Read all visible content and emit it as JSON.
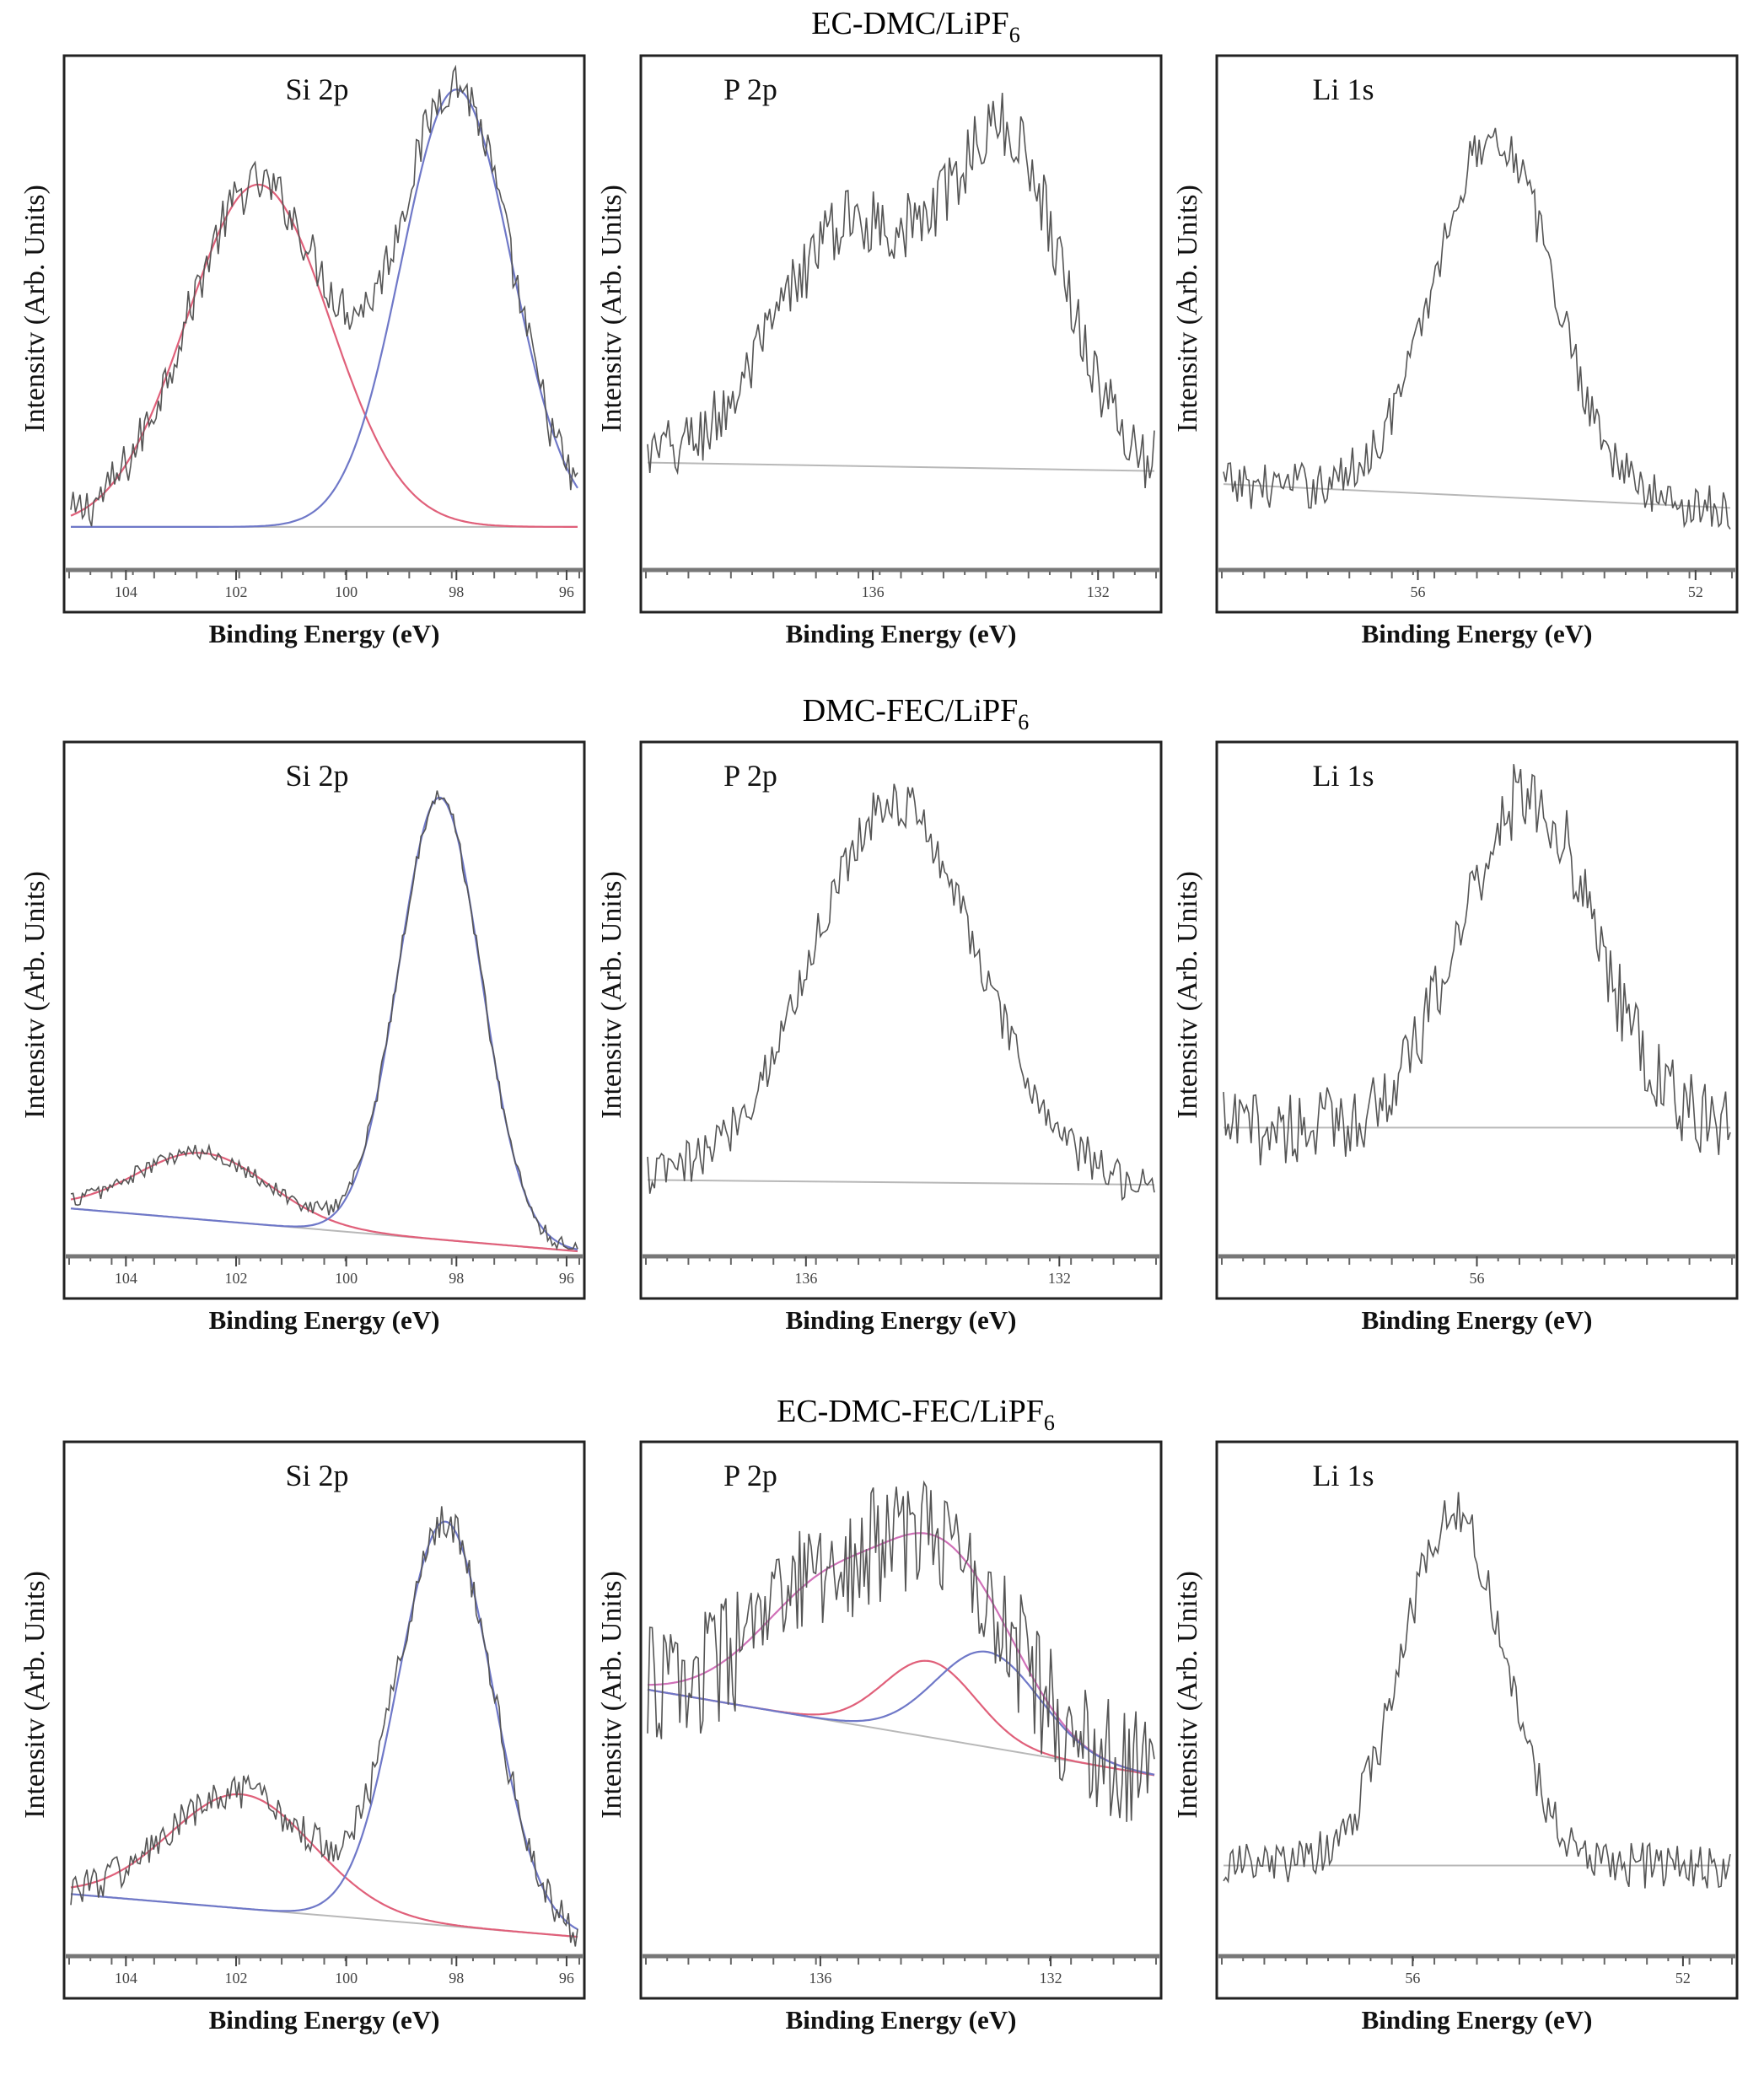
{
  "figure": {
    "row_titles": [
      {
        "main": "EC-DMC/LiPF",
        "sub": "6"
      },
      {
        "main": "DMC-FEC/LiPF",
        "sub": "6"
      },
      {
        "main": "EC-DMC-FEC/LiPF",
        "sub": "6"
      }
    ]
  },
  "colors": {
    "spectrum": "#555555",
    "baseline": "#b8b8b8",
    "fit_red": "#e0607a",
    "fit_blue": "#6f78c8",
    "fit_pink": "#d070b8",
    "axis": "#333333"
  },
  "chart_data": [
    {
      "id": "r1-si2p",
      "type": "line",
      "row": 0,
      "col": 0,
      "label": "Si 2p",
      "xlabel": "Binding Energy (eV)",
      "ylabel": "Intensitv (Arb. Units)",
      "xlim": [
        105,
        95.8
      ],
      "ylim": [
        0,
        1.05
      ],
      "xticks": [
        104,
        102,
        100,
        98,
        96
      ],
      "baseline": [
        [
          105,
          0.08
        ],
        [
          95.8,
          0.08
        ]
      ],
      "peaks": [
        {
          "center": 101.6,
          "height": 0.72,
          "width": 1.3,
          "color": "fit_red"
        },
        {
          "center": 98.0,
          "height": 0.92,
          "width": 1.0,
          "color": "fit_blue"
        }
      ],
      "fits": [
        {
          "name": "component-1",
          "color": "fit_red",
          "peaks": [
            0
          ]
        },
        {
          "name": "component-2",
          "color": "fit_blue",
          "peaks": [
            1
          ]
        }
      ],
      "noise": 0.05
    },
    {
      "id": "r1-p2p",
      "type": "line",
      "row": 0,
      "col": 1,
      "label": "P 2p",
      "xlabel": "Binding Energy (eV)",
      "ylabel": "Intensitv (Arb. Units)",
      "xlim": [
        140,
        131
      ],
      "ylim": [
        -0.12,
        1.05
      ],
      "xticks": [
        136,
        132
      ],
      "baseline": [
        [
          140,
          0.12
        ],
        [
          131,
          0.1
        ]
      ],
      "peaks": [
        {
          "center": 136.4,
          "height": 0.56,
          "width": 1.3
        },
        {
          "center": 133.6,
          "height": 0.74,
          "width": 1.0
        }
      ],
      "fits": [],
      "noise": 0.08
    },
    {
      "id": "r1-li1s",
      "type": "line",
      "row": 0,
      "col": 2,
      "label": "Li 1s",
      "xlabel": "Binding Energy (eV)",
      "ylabel": "Intensitv (Arb. Units)",
      "xlim": [
        58.8,
        51.5
      ],
      "ylim": [
        0,
        1.05
      ],
      "xticks": [
        56,
        52
      ],
      "baseline": [
        [
          58.8,
          0.17
        ],
        [
          51.5,
          0.12
        ]
      ],
      "peaks": [
        {
          "center": 54.9,
          "height": 0.76,
          "width": 0.85
        }
      ],
      "fits": [],
      "noise": 0.05
    },
    {
      "id": "r2-si2p",
      "type": "line",
      "row": 1,
      "col": 0,
      "label": "Si 2p",
      "xlabel": "Binding Energy (eV)",
      "ylabel": "Intensitv (Arb. Units)",
      "xlim": [
        105,
        95.8
      ],
      "ylim": [
        0,
        1.05
      ],
      "xticks": [
        104,
        102,
        100,
        98,
        96
      ],
      "baseline": [
        [
          105,
          0.09
        ],
        [
          95.8,
          0.0
        ]
      ],
      "peaks": [
        {
          "center": 102.6,
          "height": 0.14,
          "width": 1.2,
          "color": "fit_red"
        },
        {
          "center": 98.3,
          "height": 0.93,
          "width": 0.75,
          "color": "fit_blue"
        }
      ],
      "fits": [
        {
          "name": "component-1",
          "color": "fit_red",
          "peaks": [
            0
          ]
        },
        {
          "name": "component-2",
          "color": "fit_blue",
          "peaks": [
            1
          ]
        }
      ],
      "noise": 0.018
    },
    {
      "id": "r2-p2p",
      "type": "line",
      "row": 1,
      "col": 1,
      "label": "P 2p",
      "xlabel": "Binding Energy (eV)",
      "ylabel": "Intensitv (Arb. Units)",
      "xlim": [
        138.5,
        130.5
      ],
      "ylim": [
        0,
        1.05
      ],
      "xticks": [
        136,
        132
      ],
      "baseline": [
        [
          138.5,
          0.15
        ],
        [
          130.5,
          0.14
        ]
      ],
      "peaks": [
        {
          "center": 134.6,
          "height": 0.8,
          "width": 1.3
        }
      ],
      "fits": [],
      "noise": 0.05
    },
    {
      "id": "r2-li1s",
      "type": "line",
      "row": 1,
      "col": 2,
      "label": "Li 1s",
      "xlabel": "Binding Energy (eV)",
      "ylabel": "Intensitv (Arb. Units)",
      "xlim": [
        60,
        52
      ],
      "ylim": [
        0,
        1.05
      ],
      "xticks": [
        56
      ],
      "baseline": [
        [
          60,
          0.26
        ],
        [
          52,
          0.26
        ]
      ],
      "peaks": [
        {
          "center": 55.2,
          "height": 0.7,
          "width": 1.05
        }
      ],
      "fits": [],
      "noise": 0.08
    },
    {
      "id": "r3-si2p",
      "type": "line",
      "row": 2,
      "col": 0,
      "label": "Si 2p",
      "xlabel": "Binding Energy (eV)",
      "ylabel": "Intensitv (Arb. Units)",
      "xlim": [
        105,
        95.8
      ],
      "ylim": [
        0,
        1.05
      ],
      "xticks": [
        104,
        102,
        100,
        98,
        96
      ],
      "baseline": [
        [
          105,
          0.12
        ],
        [
          95.8,
          0.03
        ]
      ],
      "peaks": [
        {
          "center": 101.9,
          "height": 0.24,
          "width": 1.3,
          "color": "fit_red"
        },
        {
          "center": 98.2,
          "height": 0.85,
          "width": 0.85,
          "color": "fit_blue"
        }
      ],
      "fits": [
        {
          "name": "component-1",
          "color": "fit_red",
          "peaks": [
            0
          ]
        },
        {
          "name": "component-2",
          "color": "fit_blue",
          "peaks": [
            1
          ]
        }
      ],
      "noise": 0.04
    },
    {
      "id": "r3-p2p",
      "type": "line",
      "row": 2,
      "col": 1,
      "label": "P 2p",
      "xlabel": "Binding Energy (eV)",
      "ylabel": "Intensitv (Arb. Units)",
      "xlim": [
        139,
        130.2
      ],
      "ylim": [
        0,
        1.05
      ],
      "xticks": [
        136,
        132
      ],
      "baseline": [
        [
          139,
          0.55
        ],
        [
          130.2,
          0.37
        ]
      ],
      "peaks": [
        {
          "center": 135.6,
          "height": 0.31,
          "width": 1.3,
          "color": "fit_pink"
        },
        {
          "center": 134.1,
          "height": 0.16,
          "width": 0.8,
          "color": "fit_red"
        },
        {
          "center": 133.1,
          "height": 0.2,
          "width": 0.9,
          "color": "fit_blue"
        }
      ],
      "fits": [
        {
          "name": "envelope",
          "color": "fit_pink",
          "peaks": [
            0,
            1,
            2
          ]
        },
        {
          "name": "component-2",
          "color": "fit_red",
          "peaks": [
            1
          ]
        },
        {
          "name": "component-3",
          "color": "fit_blue",
          "peaks": [
            2
          ]
        }
      ],
      "noise": 0.13
    },
    {
      "id": "r3-li1s",
      "type": "line",
      "row": 2,
      "col": 2,
      "label": "Li 1s",
      "xlabel": "Binding Energy (eV)",
      "ylabel": "Intensitv (Arb. Units)",
      "xlim": [
        58.8,
        51.3
      ],
      "ylim": [
        0,
        1.05
      ],
      "xticks": [
        56,
        52
      ],
      "baseline": [
        [
          58.8,
          0.18
        ],
        [
          51.3,
          0.18
        ]
      ],
      "peaks": [
        {
          "center": 55.4,
          "height": 0.74,
          "width": 0.75
        }
      ],
      "fits": [],
      "noise": 0.05
    }
  ]
}
